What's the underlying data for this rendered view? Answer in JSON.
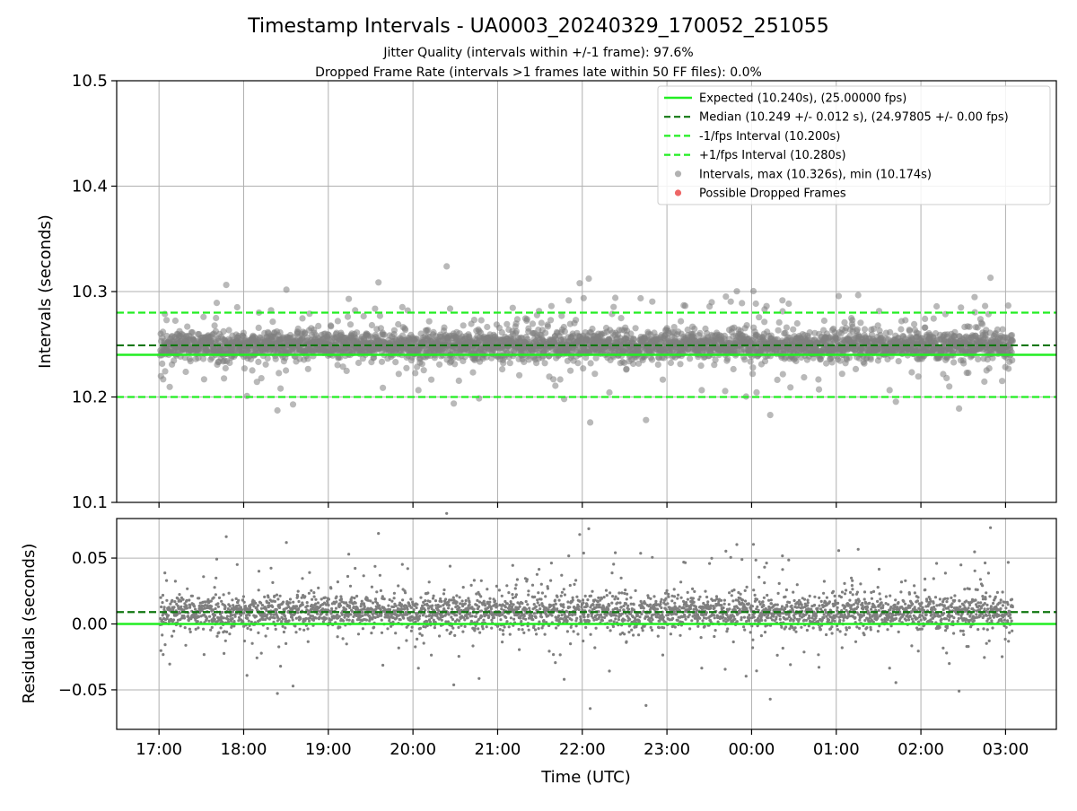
{
  "chart_data": {
    "type": "scatter",
    "title": "Timestamp Intervals - UA0003_20240329_170052_251055",
    "subtitles": [
      "Jitter Quality (intervals within +/-1 frame): 97.6%",
      "Dropped Frame Rate (intervals >1 frames late within 50 FF files): 0.0%"
    ],
    "xlabel": "Time (UTC)",
    "x_start": "2024-03-29T17:00:52",
    "x_end": "2024-03-30T03:05:00",
    "xlim": [
      "2024-03-29T16:30:00",
      "2024-03-30T03:36:00"
    ],
    "x_ticks": [
      {
        "value": "2024-03-29T17:00:00",
        "label": "17:00"
      },
      {
        "value": "2024-03-29T18:00:00",
        "label": "18:00"
      },
      {
        "value": "2024-03-29T19:00:00",
        "label": "19:00"
      },
      {
        "value": "2024-03-29T20:00:00",
        "label": "20:00"
      },
      {
        "value": "2024-03-29T21:00:00",
        "label": "21:00"
      },
      {
        "value": "2024-03-29T22:00:00",
        "label": "22:00"
      },
      {
        "value": "2024-03-29T23:00:00",
        "label": "23:00"
      },
      {
        "value": "2024-03-30T00:00:00",
        "label": "00:00"
      },
      {
        "value": "2024-03-30T01:00:00",
        "label": "01:00"
      },
      {
        "value": "2024-03-30T02:00:00",
        "label": "02:00"
      },
      {
        "value": "2024-03-30T03:00:00",
        "label": "03:00"
      }
    ],
    "grid": true,
    "legend_placement": "top-right",
    "colors": {
      "expected": "#22ee22",
      "median": "#117711",
      "interval_bound": "#22ee22",
      "intervals": "#7f7f7f",
      "dropped": "#ee6666",
      "grid": "#b0b0b0"
    },
    "top_panel": {
      "ylabel": "Intervals (seconds)",
      "ylim": [
        10.1,
        10.5
      ],
      "yticks": [
        "10.1",
        "10.2",
        "10.3",
        "10.4",
        "10.5"
      ],
      "expected": 10.24,
      "median": 10.249,
      "median_std": 0.012,
      "minus_1fps": 10.2,
      "plus_1fps": 10.28,
      "interval_max": 10.326,
      "interval_min": 10.174,
      "dropped_frames": []
    },
    "bottom_panel": {
      "ylabel": "Residuals (seconds)",
      "ylim": [
        -0.08,
        0.08
      ],
      "yticks": [
        "−0.05",
        "0.00",
        "0.05"
      ],
      "ytick_values": [
        -0.05,
        0.0,
        0.05
      ],
      "zero_line": 0.0,
      "median_residual": 0.009
    },
    "legend": [
      {
        "label": "Expected (10.240s), (25.00000 fps)",
        "style": "solid"
      },
      {
        "label": "Median (10.249 +/- 0.012 s), (24.97805 +/- 0.00 fps)",
        "style": "dashed-dark"
      },
      {
        "label": "-1/fps Interval (10.200s)",
        "style": "dashed-light"
      },
      {
        "label": "+1/fps Interval (10.280s)",
        "style": "dashed-light"
      },
      {
        "label": "Intervals, max (10.326s), min (10.174s)",
        "style": "marker-gray"
      },
      {
        "label": "Possible Dropped Frames",
        "style": "marker-red"
      }
    ]
  }
}
